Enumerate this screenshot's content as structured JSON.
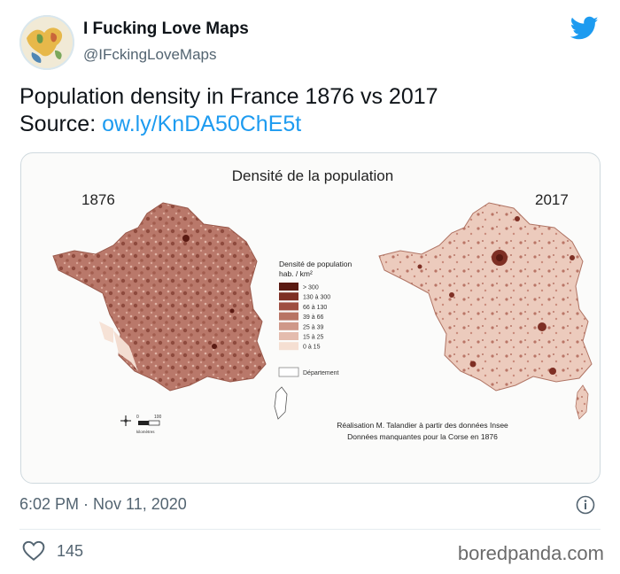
{
  "author": {
    "name": "I Fucking Love Maps",
    "handle": "@IFckingLoveMaps"
  },
  "tweet": {
    "line1": "Population density in France 1876 vs 2017",
    "source_label": "Source: ",
    "source_link": "ow.ly/KnDA50ChE5t"
  },
  "figure": {
    "title": "Densité de la population",
    "year_left": "1876",
    "year_right": "2017",
    "legend_title_line1": "Densité de population",
    "legend_title_line2": "hab. / km²",
    "legend": [
      {
        "label": "> 300",
        "color": "#5a1a12"
      },
      {
        "label": "130 à 300",
        "color": "#7e2f24"
      },
      {
        "label": "66 à 130",
        "color": "#9e4e40"
      },
      {
        "label": "39 à 66",
        "color": "#b87464"
      },
      {
        "label": "25 à 39",
        "color": "#cf9889"
      },
      {
        "label": "15 à 25",
        "color": "#e4bcae"
      },
      {
        "label": "0 à 15",
        "color": "#f5dfd2"
      }
    ],
    "dept_label": "Département",
    "scale_0": "0",
    "scale_100": "100",
    "scale_unit": "kilomètres",
    "credit_line1": "Réalisation M. Talandier à partir des données Insee",
    "credit_line2": "Données manquantes pour la Corse en 1876"
  },
  "meta": {
    "timestamp": "6:02 PM · Nov 11, 2020",
    "likes": "145",
    "watermark": "boredpanda.com"
  },
  "colors": {
    "accent": "#1d9bf0",
    "text": "#0f1419",
    "muted": "#536471"
  },
  "icons": [
    "twitter-bird-icon",
    "info-icon",
    "heart-icon",
    "north-arrow-icon"
  ]
}
